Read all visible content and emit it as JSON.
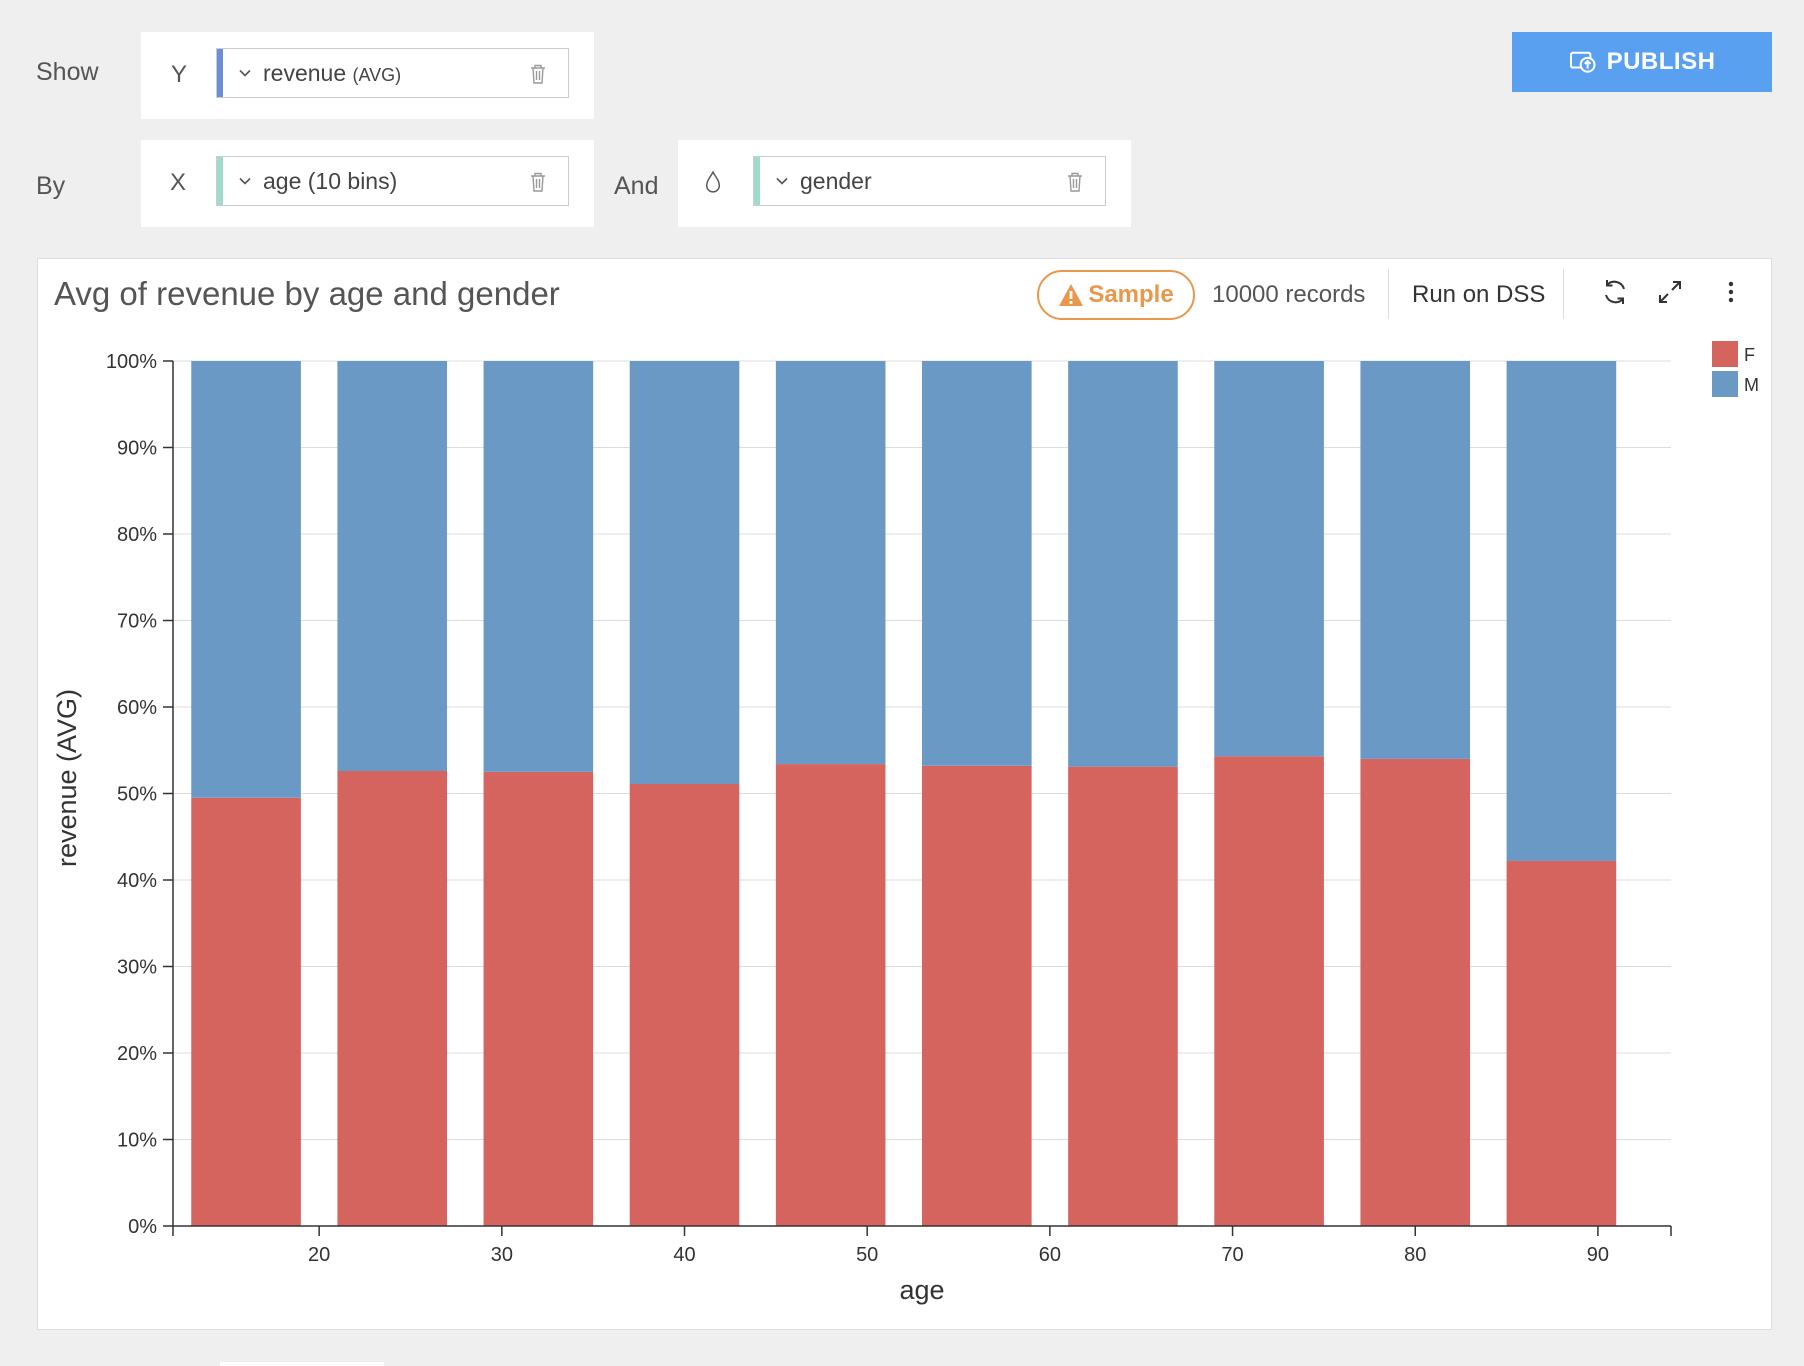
{
  "controls": {
    "show_label": "Show",
    "by_label": "By",
    "and_label": "And",
    "y_axis_letter": "Y",
    "x_axis_letter": "X",
    "y_field": {
      "name": "revenue",
      "agg": "(AVG)"
    },
    "x_field": {
      "name": "age (10 bins)"
    },
    "color_field": {
      "name": "gender"
    },
    "publish_label": "PUBLISH"
  },
  "chart_header": {
    "title": "Avg of revenue by age and gender",
    "sample_label": "Sample",
    "records_label": "10000 records",
    "run_label": "Run on DSS"
  },
  "colors": {
    "publish_bg": "#5aa0f0",
    "sample_accent": "#e8974b",
    "y_accent": "#6b8fd6",
    "x_accent": "#9fdccb",
    "series_F": "#d5645f",
    "series_M": "#6a99c5"
  },
  "chart_data": {
    "type": "bar",
    "stacked": "percent",
    "xlabel": "age",
    "ylabel": "revenue (AVG)",
    "x_ticks": [
      20,
      30,
      40,
      50,
      60,
      70,
      80,
      90
    ],
    "x_tick_labels": [
      "20",
      "30",
      "40",
      "50",
      "60",
      "70",
      "80",
      "90"
    ],
    "xlim": [
      12,
      94
    ],
    "bins": [
      [
        13,
        19
      ],
      [
        21,
        27
      ],
      [
        29,
        35
      ],
      [
        37,
        43
      ],
      [
        45,
        51
      ],
      [
        53,
        59
      ],
      [
        61,
        67
      ],
      [
        69,
        75
      ],
      [
        77,
        83
      ],
      [
        85,
        91
      ]
    ],
    "ylim": [
      0,
      100
    ],
    "y_ticks": [
      0,
      10,
      20,
      30,
      40,
      50,
      60,
      70,
      80,
      90,
      100
    ],
    "y_tick_labels": [
      "0%",
      "10%",
      "20%",
      "30%",
      "40%",
      "50%",
      "60%",
      "70%",
      "80%",
      "90%",
      "100%"
    ],
    "series": [
      {
        "name": "F",
        "color": "#d5645f",
        "values": [
          49.5,
          52.6,
          52.5,
          51.1,
          53.4,
          53.2,
          53.1,
          54.3,
          54.0,
          42.2
        ]
      },
      {
        "name": "M",
        "color": "#6a99c5",
        "values": [
          50.5,
          47.4,
          47.5,
          48.9,
          46.6,
          46.8,
          46.9,
          45.7,
          46.0,
          57.8
        ]
      }
    ],
    "grid": true,
    "legend": "top-right"
  }
}
